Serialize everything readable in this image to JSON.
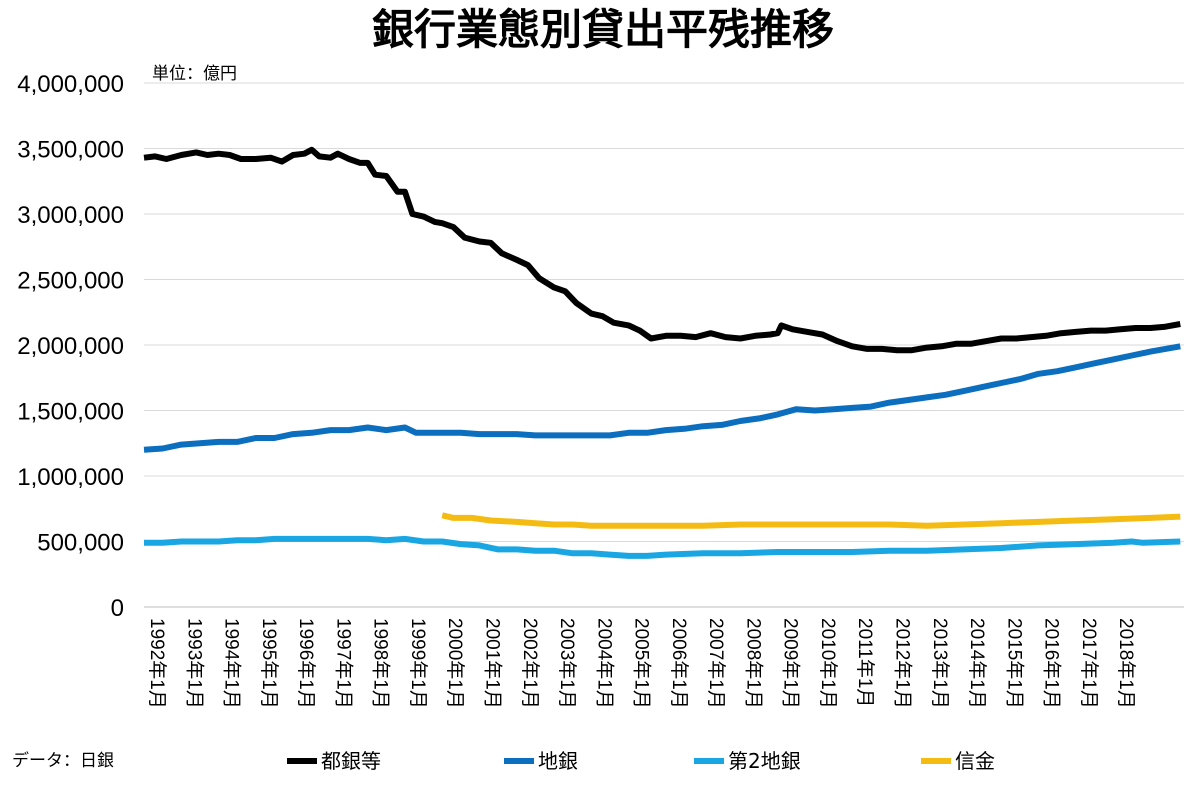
{
  "chart_data": {
    "type": "line",
    "title": "銀行業態別貸出平残推移",
    "unit_label": "単位：億円",
    "source_label": "データ：日銀",
    "ylim": [
      0,
      4000000
    ],
    "y_ticks": [
      {
        "value": 0,
        "label": "0"
      },
      {
        "value": 500000,
        "label": "500,000"
      },
      {
        "value": 1000000,
        "label": "1,000,000"
      },
      {
        "value": 1500000,
        "label": "1,500,000"
      },
      {
        "value": 2000000,
        "label": "2,000,000"
      },
      {
        "value": 2500000,
        "label": "2,500,000"
      },
      {
        "value": 3000000,
        "label": "3,000,000"
      },
      {
        "value": 3500000,
        "label": "3,500,000"
      },
      {
        "value": 4000000,
        "label": "4,000,000"
      }
    ],
    "xlim": [
      1992.0,
      2019.9
    ],
    "x_ticks": [
      {
        "value": 1992,
        "label": "1992年1月"
      },
      {
        "value": 1993,
        "label": "1993年1月"
      },
      {
        "value": 1994,
        "label": "1994年1月"
      },
      {
        "value": 1995,
        "label": "1995年1月"
      },
      {
        "value": 1996,
        "label": "1996年1月"
      },
      {
        "value": 1997,
        "label": "1997年1月"
      },
      {
        "value": 1998,
        "label": "1998年1月"
      },
      {
        "value": 1999,
        "label": "1999年1月"
      },
      {
        "value": 2000,
        "label": "2000年1月"
      },
      {
        "value": 2001,
        "label": "2001年1月"
      },
      {
        "value": 2002,
        "label": "2002年1月"
      },
      {
        "value": 2003,
        "label": "2003年1月"
      },
      {
        "value": 2004,
        "label": "2004年1月"
      },
      {
        "value": 2005,
        "label": "2005年1月"
      },
      {
        "value": 2006,
        "label": "2006年1月"
      },
      {
        "value": 2007,
        "label": "2007年1月"
      },
      {
        "value": 2008,
        "label": "2008年1月"
      },
      {
        "value": 2009,
        "label": "2009年1月"
      },
      {
        "value": 2010,
        "label": "2010年1月"
      },
      {
        "value": 2011,
        "label": "2011年1月"
      },
      {
        "value": 2012,
        "label": "2012年1月"
      },
      {
        "value": 2013,
        "label": "2013年1月"
      },
      {
        "value": 2014,
        "label": "2014年1月"
      },
      {
        "value": 2015,
        "label": "2015年1月"
      },
      {
        "value": 2016,
        "label": "2016年1月"
      },
      {
        "value": 2017,
        "label": "2017年1月"
      },
      {
        "value": 2018,
        "label": "2018年1月"
      }
    ],
    "series": [
      {
        "name": "都銀等",
        "color": "#000000",
        "points": [
          [
            1992.0,
            3430000
          ],
          [
            1992.3,
            3440000
          ],
          [
            1992.6,
            3420000
          ],
          [
            1993.0,
            3450000
          ],
          [
            1993.4,
            3470000
          ],
          [
            1993.7,
            3450000
          ],
          [
            1994.0,
            3460000
          ],
          [
            1994.3,
            3450000
          ],
          [
            1994.6,
            3420000
          ],
          [
            1995.0,
            3420000
          ],
          [
            1995.4,
            3430000
          ],
          [
            1995.7,
            3400000
          ],
          [
            1996.0,
            3450000
          ],
          [
            1996.3,
            3460000
          ],
          [
            1996.5,
            3490000
          ],
          [
            1996.7,
            3440000
          ],
          [
            1997.0,
            3430000
          ],
          [
            1997.2,
            3460000
          ],
          [
            1997.5,
            3420000
          ],
          [
            1997.8,
            3390000
          ],
          [
            1998.0,
            3390000
          ],
          [
            1998.2,
            3300000
          ],
          [
            1998.5,
            3290000
          ],
          [
            1998.8,
            3170000
          ],
          [
            1999.0,
            3170000
          ],
          [
            1999.2,
            3000000
          ],
          [
            1999.5,
            2980000
          ],
          [
            1999.8,
            2940000
          ],
          [
            2000.0,
            2930000
          ],
          [
            2000.3,
            2900000
          ],
          [
            2000.6,
            2820000
          ],
          [
            2001.0,
            2790000
          ],
          [
            2001.3,
            2780000
          ],
          [
            2001.6,
            2700000
          ],
          [
            2002.0,
            2650000
          ],
          [
            2002.3,
            2610000
          ],
          [
            2002.6,
            2510000
          ],
          [
            2003.0,
            2440000
          ],
          [
            2003.3,
            2410000
          ],
          [
            2003.6,
            2320000
          ],
          [
            2004.0,
            2240000
          ],
          [
            2004.3,
            2220000
          ],
          [
            2004.6,
            2170000
          ],
          [
            2005.0,
            2150000
          ],
          [
            2005.3,
            2110000
          ],
          [
            2005.6,
            2050000
          ],
          [
            2006.0,
            2070000
          ],
          [
            2006.4,
            2070000
          ],
          [
            2006.8,
            2060000
          ],
          [
            2007.2,
            2090000
          ],
          [
            2007.6,
            2060000
          ],
          [
            2008.0,
            2050000
          ],
          [
            2008.4,
            2070000
          ],
          [
            2008.8,
            2080000
          ],
          [
            2009.0,
            2090000
          ],
          [
            2009.1,
            2150000
          ],
          [
            2009.4,
            2120000
          ],
          [
            2009.8,
            2100000
          ],
          [
            2010.2,
            2080000
          ],
          [
            2010.6,
            2030000
          ],
          [
            2011.0,
            1990000
          ],
          [
            2011.4,
            1970000
          ],
          [
            2011.8,
            1970000
          ],
          [
            2012.2,
            1960000
          ],
          [
            2012.6,
            1960000
          ],
          [
            2013.0,
            1980000
          ],
          [
            2013.4,
            1990000
          ],
          [
            2013.8,
            2010000
          ],
          [
            2014.2,
            2010000
          ],
          [
            2014.6,
            2030000
          ],
          [
            2015.0,
            2050000
          ],
          [
            2015.4,
            2050000
          ],
          [
            2015.8,
            2060000
          ],
          [
            2016.2,
            2070000
          ],
          [
            2016.6,
            2090000
          ],
          [
            2017.0,
            2100000
          ],
          [
            2017.4,
            2110000
          ],
          [
            2017.8,
            2110000
          ],
          [
            2018.2,
            2120000
          ],
          [
            2018.6,
            2130000
          ],
          [
            2019.0,
            2130000
          ],
          [
            2019.4,
            2140000
          ],
          [
            2019.8,
            2160000
          ]
        ]
      },
      {
        "name": "地銀",
        "color": "#0C6EBE",
        "points": [
          [
            1992.0,
            1200000
          ],
          [
            1992.5,
            1210000
          ],
          [
            1993.0,
            1240000
          ],
          [
            1993.5,
            1250000
          ],
          [
            1994.0,
            1260000
          ],
          [
            1994.5,
            1260000
          ],
          [
            1995.0,
            1290000
          ],
          [
            1995.5,
            1290000
          ],
          [
            1996.0,
            1320000
          ],
          [
            1996.5,
            1330000
          ],
          [
            1997.0,
            1350000
          ],
          [
            1997.5,
            1350000
          ],
          [
            1998.0,
            1370000
          ],
          [
            1998.5,
            1350000
          ],
          [
            1999.0,
            1370000
          ],
          [
            1999.3,
            1330000
          ],
          [
            1999.6,
            1330000
          ],
          [
            2000.0,
            1330000
          ],
          [
            2000.5,
            1330000
          ],
          [
            2001.0,
            1320000
          ],
          [
            2001.5,
            1320000
          ],
          [
            2002.0,
            1320000
          ],
          [
            2002.5,
            1310000
          ],
          [
            2003.0,
            1310000
          ],
          [
            2003.5,
            1310000
          ],
          [
            2004.0,
            1310000
          ],
          [
            2004.5,
            1310000
          ],
          [
            2005.0,
            1330000
          ],
          [
            2005.5,
            1330000
          ],
          [
            2006.0,
            1350000
          ],
          [
            2006.5,
            1360000
          ],
          [
            2007.0,
            1380000
          ],
          [
            2007.5,
            1390000
          ],
          [
            2008.0,
            1420000
          ],
          [
            2008.5,
            1440000
          ],
          [
            2009.0,
            1470000
          ],
          [
            2009.5,
            1510000
          ],
          [
            2010.0,
            1500000
          ],
          [
            2010.5,
            1510000
          ],
          [
            2011.0,
            1520000
          ],
          [
            2011.5,
            1530000
          ],
          [
            2012.0,
            1560000
          ],
          [
            2012.5,
            1580000
          ],
          [
            2013.0,
            1600000
          ],
          [
            2013.5,
            1620000
          ],
          [
            2014.0,
            1650000
          ],
          [
            2014.5,
            1680000
          ],
          [
            2015.0,
            1710000
          ],
          [
            2015.5,
            1740000
          ],
          [
            2016.0,
            1780000
          ],
          [
            2016.5,
            1800000
          ],
          [
            2017.0,
            1830000
          ],
          [
            2017.5,
            1860000
          ],
          [
            2018.0,
            1890000
          ],
          [
            2018.5,
            1920000
          ],
          [
            2019.0,
            1950000
          ],
          [
            2019.8,
            1990000
          ]
        ]
      },
      {
        "name": "第2地銀",
        "color": "#1AA6E3",
        "points": [
          [
            1992.0,
            490000
          ],
          [
            1992.5,
            490000
          ],
          [
            1993.0,
            500000
          ],
          [
            1993.5,
            500000
          ],
          [
            1994.0,
            500000
          ],
          [
            1994.5,
            510000
          ],
          [
            1995.0,
            510000
          ],
          [
            1995.5,
            520000
          ],
          [
            1996.0,
            520000
          ],
          [
            1996.5,
            520000
          ],
          [
            1997.0,
            520000
          ],
          [
            1997.5,
            520000
          ],
          [
            1998.0,
            520000
          ],
          [
            1998.5,
            510000
          ],
          [
            1999.0,
            520000
          ],
          [
            1999.5,
            500000
          ],
          [
            2000.0,
            500000
          ],
          [
            2000.5,
            480000
          ],
          [
            2001.0,
            470000
          ],
          [
            2001.5,
            440000
          ],
          [
            2002.0,
            440000
          ],
          [
            2002.5,
            430000
          ],
          [
            2003.0,
            430000
          ],
          [
            2003.5,
            410000
          ],
          [
            2004.0,
            410000
          ],
          [
            2004.5,
            400000
          ],
          [
            2005.0,
            390000
          ],
          [
            2005.5,
            390000
          ],
          [
            2006.0,
            400000
          ],
          [
            2007.0,
            410000
          ],
          [
            2008.0,
            410000
          ],
          [
            2009.0,
            420000
          ],
          [
            2010.0,
            420000
          ],
          [
            2011.0,
            420000
          ],
          [
            2012.0,
            430000
          ],
          [
            2013.0,
            430000
          ],
          [
            2014.0,
            440000
          ],
          [
            2015.0,
            450000
          ],
          [
            2016.0,
            470000
          ],
          [
            2017.0,
            480000
          ],
          [
            2018.0,
            490000
          ],
          [
            2018.5,
            500000
          ],
          [
            2018.8,
            490000
          ],
          [
            2019.8,
            500000
          ]
        ]
      },
      {
        "name": "信金",
        "color": "#F4BC12",
        "points": [
          [
            2000.0,
            700000
          ],
          [
            2000.3,
            680000
          ],
          [
            2000.8,
            680000
          ],
          [
            2001.3,
            660000
          ],
          [
            2002.0,
            650000
          ],
          [
            2002.5,
            640000
          ],
          [
            2003.0,
            630000
          ],
          [
            2003.5,
            630000
          ],
          [
            2004.0,
            620000
          ],
          [
            2005.0,
            620000
          ],
          [
            2006.0,
            620000
          ],
          [
            2007.0,
            620000
          ],
          [
            2008.0,
            630000
          ],
          [
            2009.0,
            630000
          ],
          [
            2010.0,
            630000
          ],
          [
            2011.0,
            630000
          ],
          [
            2012.0,
            630000
          ],
          [
            2013.0,
            620000
          ],
          [
            2014.0,
            630000
          ],
          [
            2015.0,
            640000
          ],
          [
            2016.0,
            650000
          ],
          [
            2017.0,
            660000
          ],
          [
            2018.0,
            670000
          ],
          [
            2019.0,
            680000
          ],
          [
            2019.8,
            690000
          ]
        ]
      }
    ],
    "legend_position": "bottom"
  }
}
